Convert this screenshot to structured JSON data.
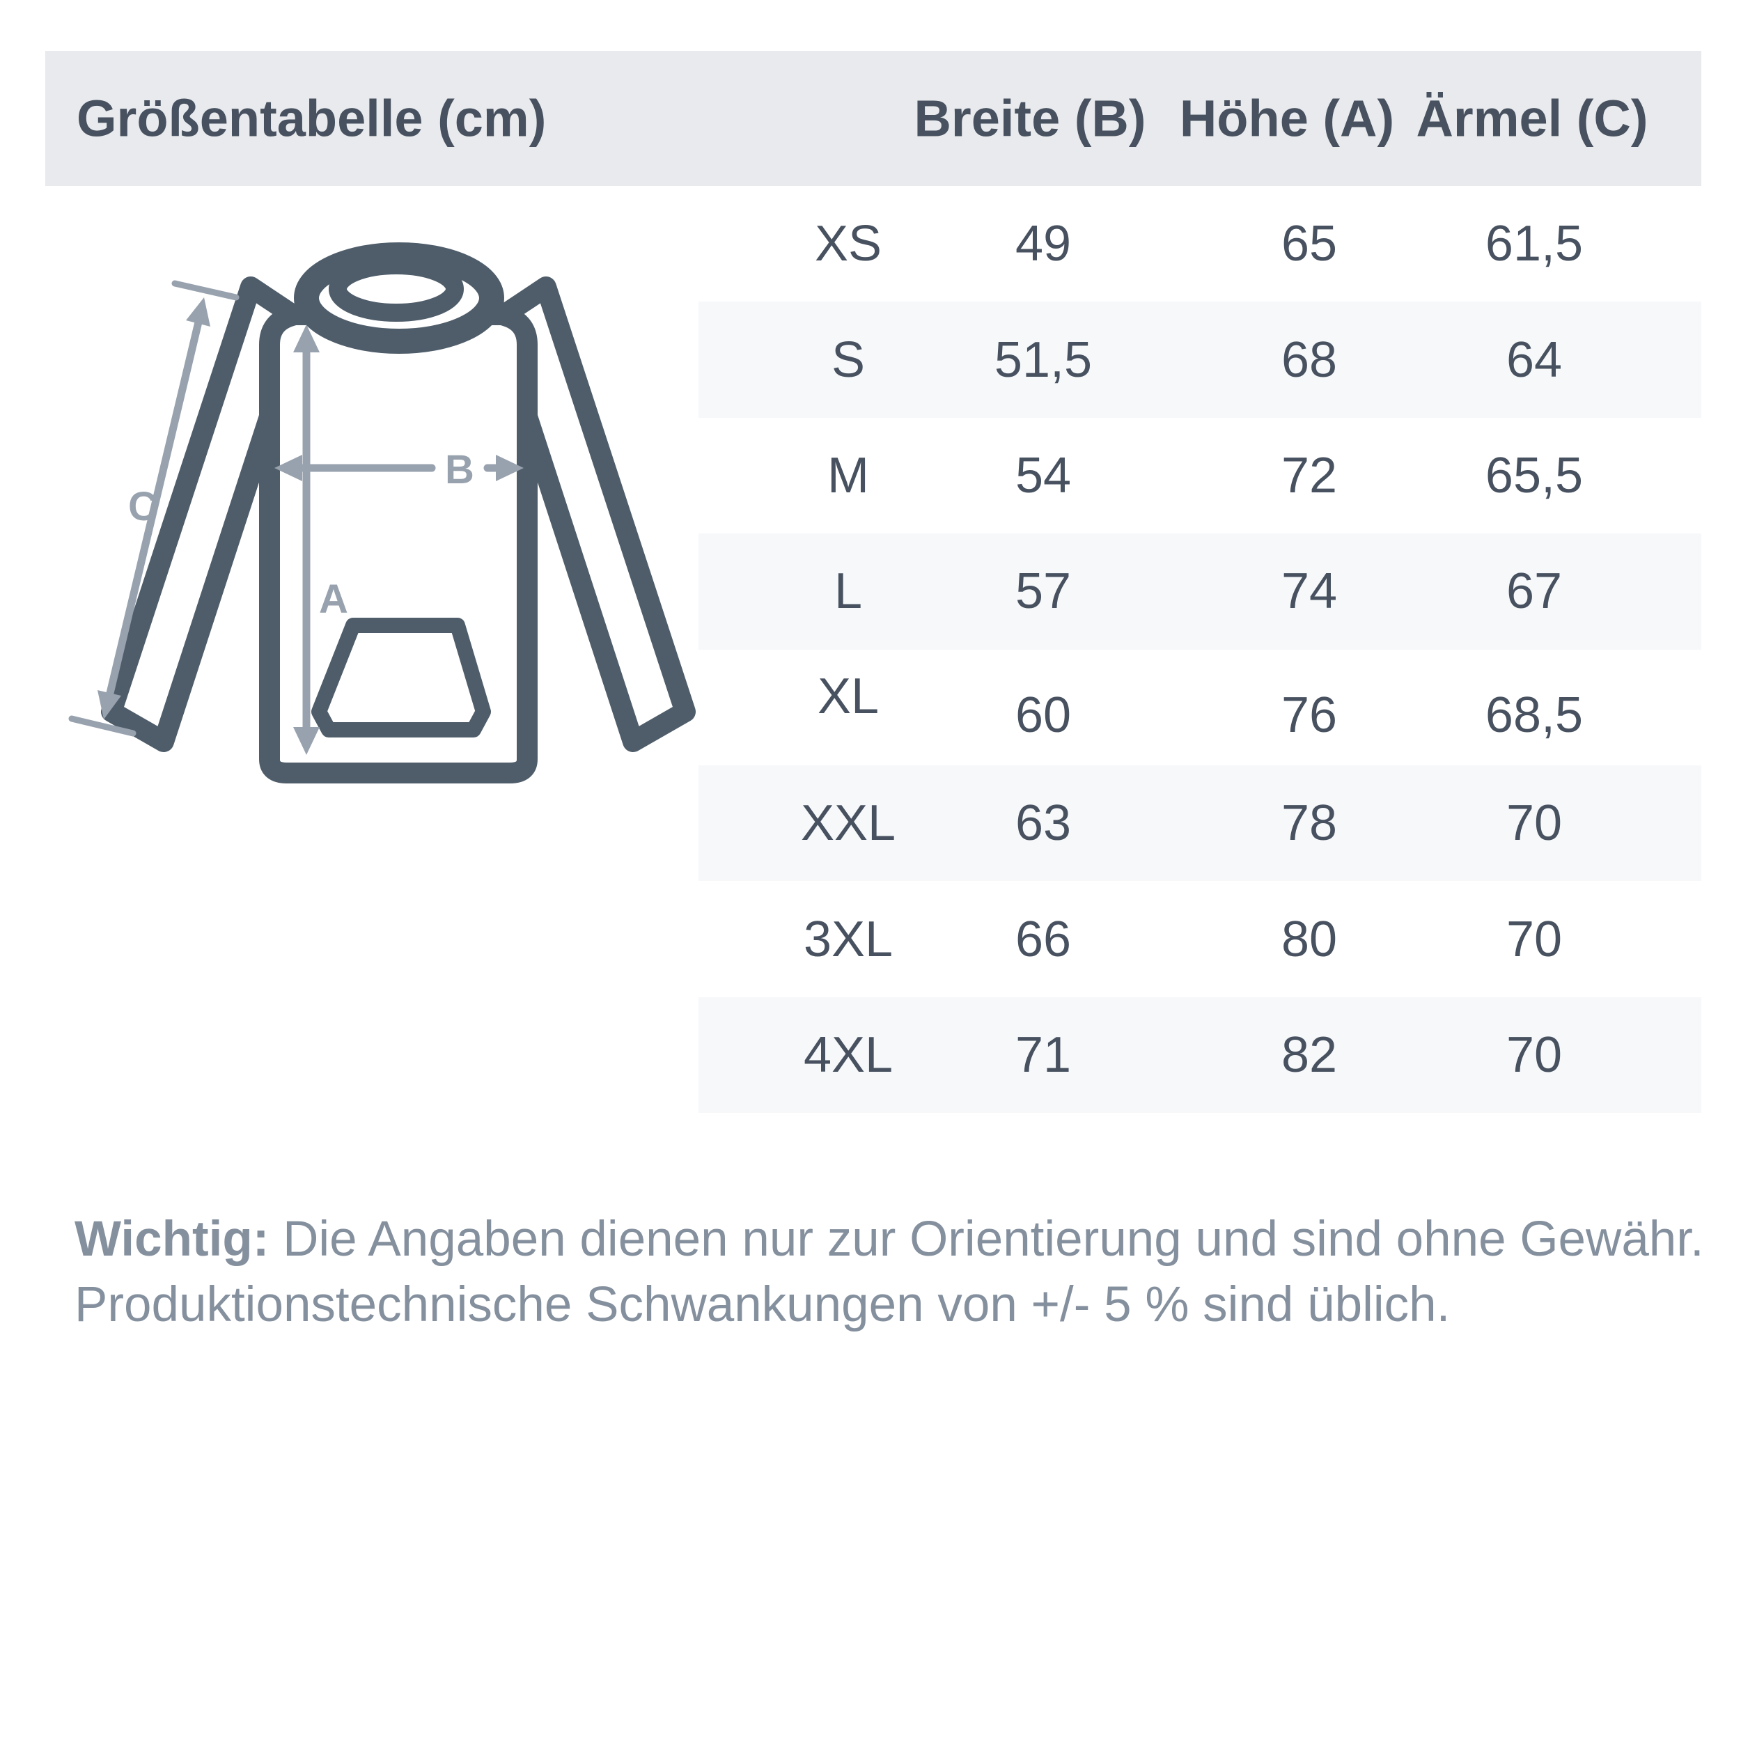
{
  "header": {
    "title": "Größentabelle (cm)",
    "columns": [
      {
        "label": "Breite (B)"
      },
      {
        "label": "Höhe (A)"
      },
      {
        "label": "Ärmel (C)"
      }
    ]
  },
  "diagram": {
    "height_label": "A",
    "width_label": "B",
    "sleeve_label": "C"
  },
  "table": {
    "rows": [
      {
        "size": "XS",
        "breite": "49",
        "hoehe": "65",
        "aermel": "61,5",
        "shaded": false
      },
      {
        "size": "S",
        "breite": "51,5",
        "hoehe": "68",
        "aermel": "64",
        "shaded": true
      },
      {
        "size": "M",
        "breite": "54",
        "hoehe": "72",
        "aermel": "65,5",
        "shaded": false
      },
      {
        "size": "L",
        "breite": "57",
        "hoehe": "74",
        "aermel": "67",
        "shaded": true
      },
      {
        "size": "XL",
        "breite": "60",
        "hoehe": "76",
        "aermel": "68,5",
        "shaded": false,
        "offset": true
      },
      {
        "size": "XXL",
        "breite": "63",
        "hoehe": "78",
        "aermel": "70",
        "shaded": true
      },
      {
        "size": "3XL",
        "breite": "66",
        "hoehe": "80",
        "aermel": "70",
        "shaded": false
      },
      {
        "size": "4XL",
        "breite": "71",
        "hoehe": "82",
        "aermel": "70",
        "shaded": true
      }
    ]
  },
  "note": {
    "prefix": "Wichtig:",
    "line1": " Die Angaben dienen nur zur Orientierung und sind ohne Gewähr.",
    "line2": "Produktionstechnische Schwankungen von +/- 5 % sind üblich."
  },
  "colors": {
    "header_bg": "#e8eaed",
    "row_alt_bg": "#f6f8fa",
    "text_dark": "#47515f",
    "outline": "#4f5d6a",
    "arrow": "#98a2ae",
    "note_text": "#85909e",
    "page_bg": "#ffffff"
  }
}
